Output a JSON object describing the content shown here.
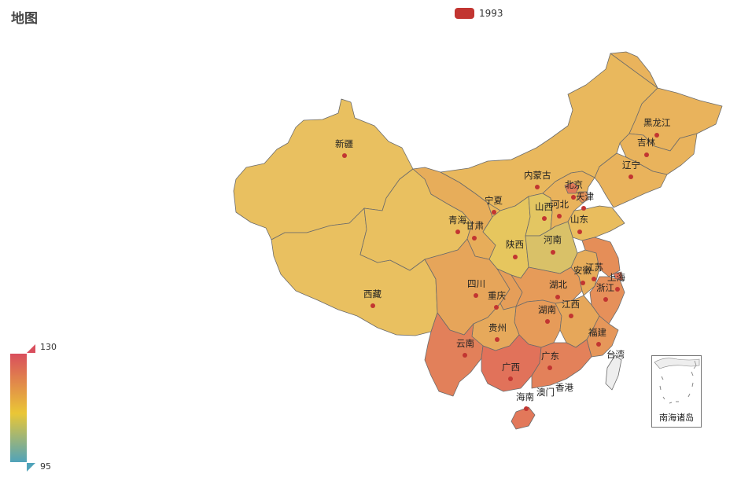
{
  "title": "地图",
  "legend": {
    "label": "1993",
    "color": "#c23531"
  },
  "visual_map": {
    "max": "130",
    "min": "95",
    "colors": [
      "#d94e5d",
      "#eac736",
      "#50a3ba"
    ]
  },
  "inset_label": "南海诸岛",
  "provinces": [
    {
      "name": "新疆",
      "color": "#e9c060"
    },
    {
      "name": "西藏",
      "color": "#e9c060"
    },
    {
      "name": "青海",
      "color": "#e9c060"
    },
    {
      "name": "甘肃",
      "color": "#e7ad5a"
    },
    {
      "name": "内蒙古",
      "color": "#e9b85d"
    },
    {
      "name": "黑龙江",
      "color": "#e9b35c"
    },
    {
      "name": "吉林",
      "color": "#e9b35c"
    },
    {
      "name": "辽宁",
      "color": "#e9b35c"
    },
    {
      "name": "宁夏",
      "color": "#e9b85d"
    },
    {
      "name": "陕西",
      "color": "#e6c65e"
    },
    {
      "name": "山西",
      "color": "#e3c662"
    },
    {
      "name": "河北",
      "color": "#e9b35c"
    },
    {
      "name": "北京",
      "color": "#e17a58"
    },
    {
      "name": "天津",
      "color": "#e29159"
    },
    {
      "name": "山东",
      "color": "#e9bd5e"
    },
    {
      "name": "河南",
      "color": "#d9c168"
    },
    {
      "name": "四川",
      "color": "#e6a55a"
    },
    {
      "name": "重庆",
      "color": "#e59e59"
    },
    {
      "name": "湖北",
      "color": "#e69b59"
    },
    {
      "name": "安徽",
      "color": "#e7ad5b"
    },
    {
      "name": "江苏",
      "color": "#e58e58"
    },
    {
      "name": "上海",
      "color": "#e2735a"
    },
    {
      "name": "浙江",
      "color": "#e6905a"
    },
    {
      "name": "湖南",
      "color": "#e69b59"
    },
    {
      "name": "江西",
      "color": "#e6a75a"
    },
    {
      "name": "福建",
      "color": "#e6975a"
    },
    {
      "name": "贵州",
      "color": "#e6a95b"
    },
    {
      "name": "云南",
      "color": "#e2805a"
    },
    {
      "name": "广西",
      "color": "#e1725a"
    },
    {
      "name": "广东",
      "color": "#e3815a"
    },
    {
      "name": "海南",
      "color": "#e2785a"
    },
    {
      "name": "台湾",
      "color": "#eeeeee"
    },
    {
      "name": "香港",
      "color": "#e3815a"
    },
    {
      "name": "澳门",
      "color": "#e3815a"
    }
  ]
}
